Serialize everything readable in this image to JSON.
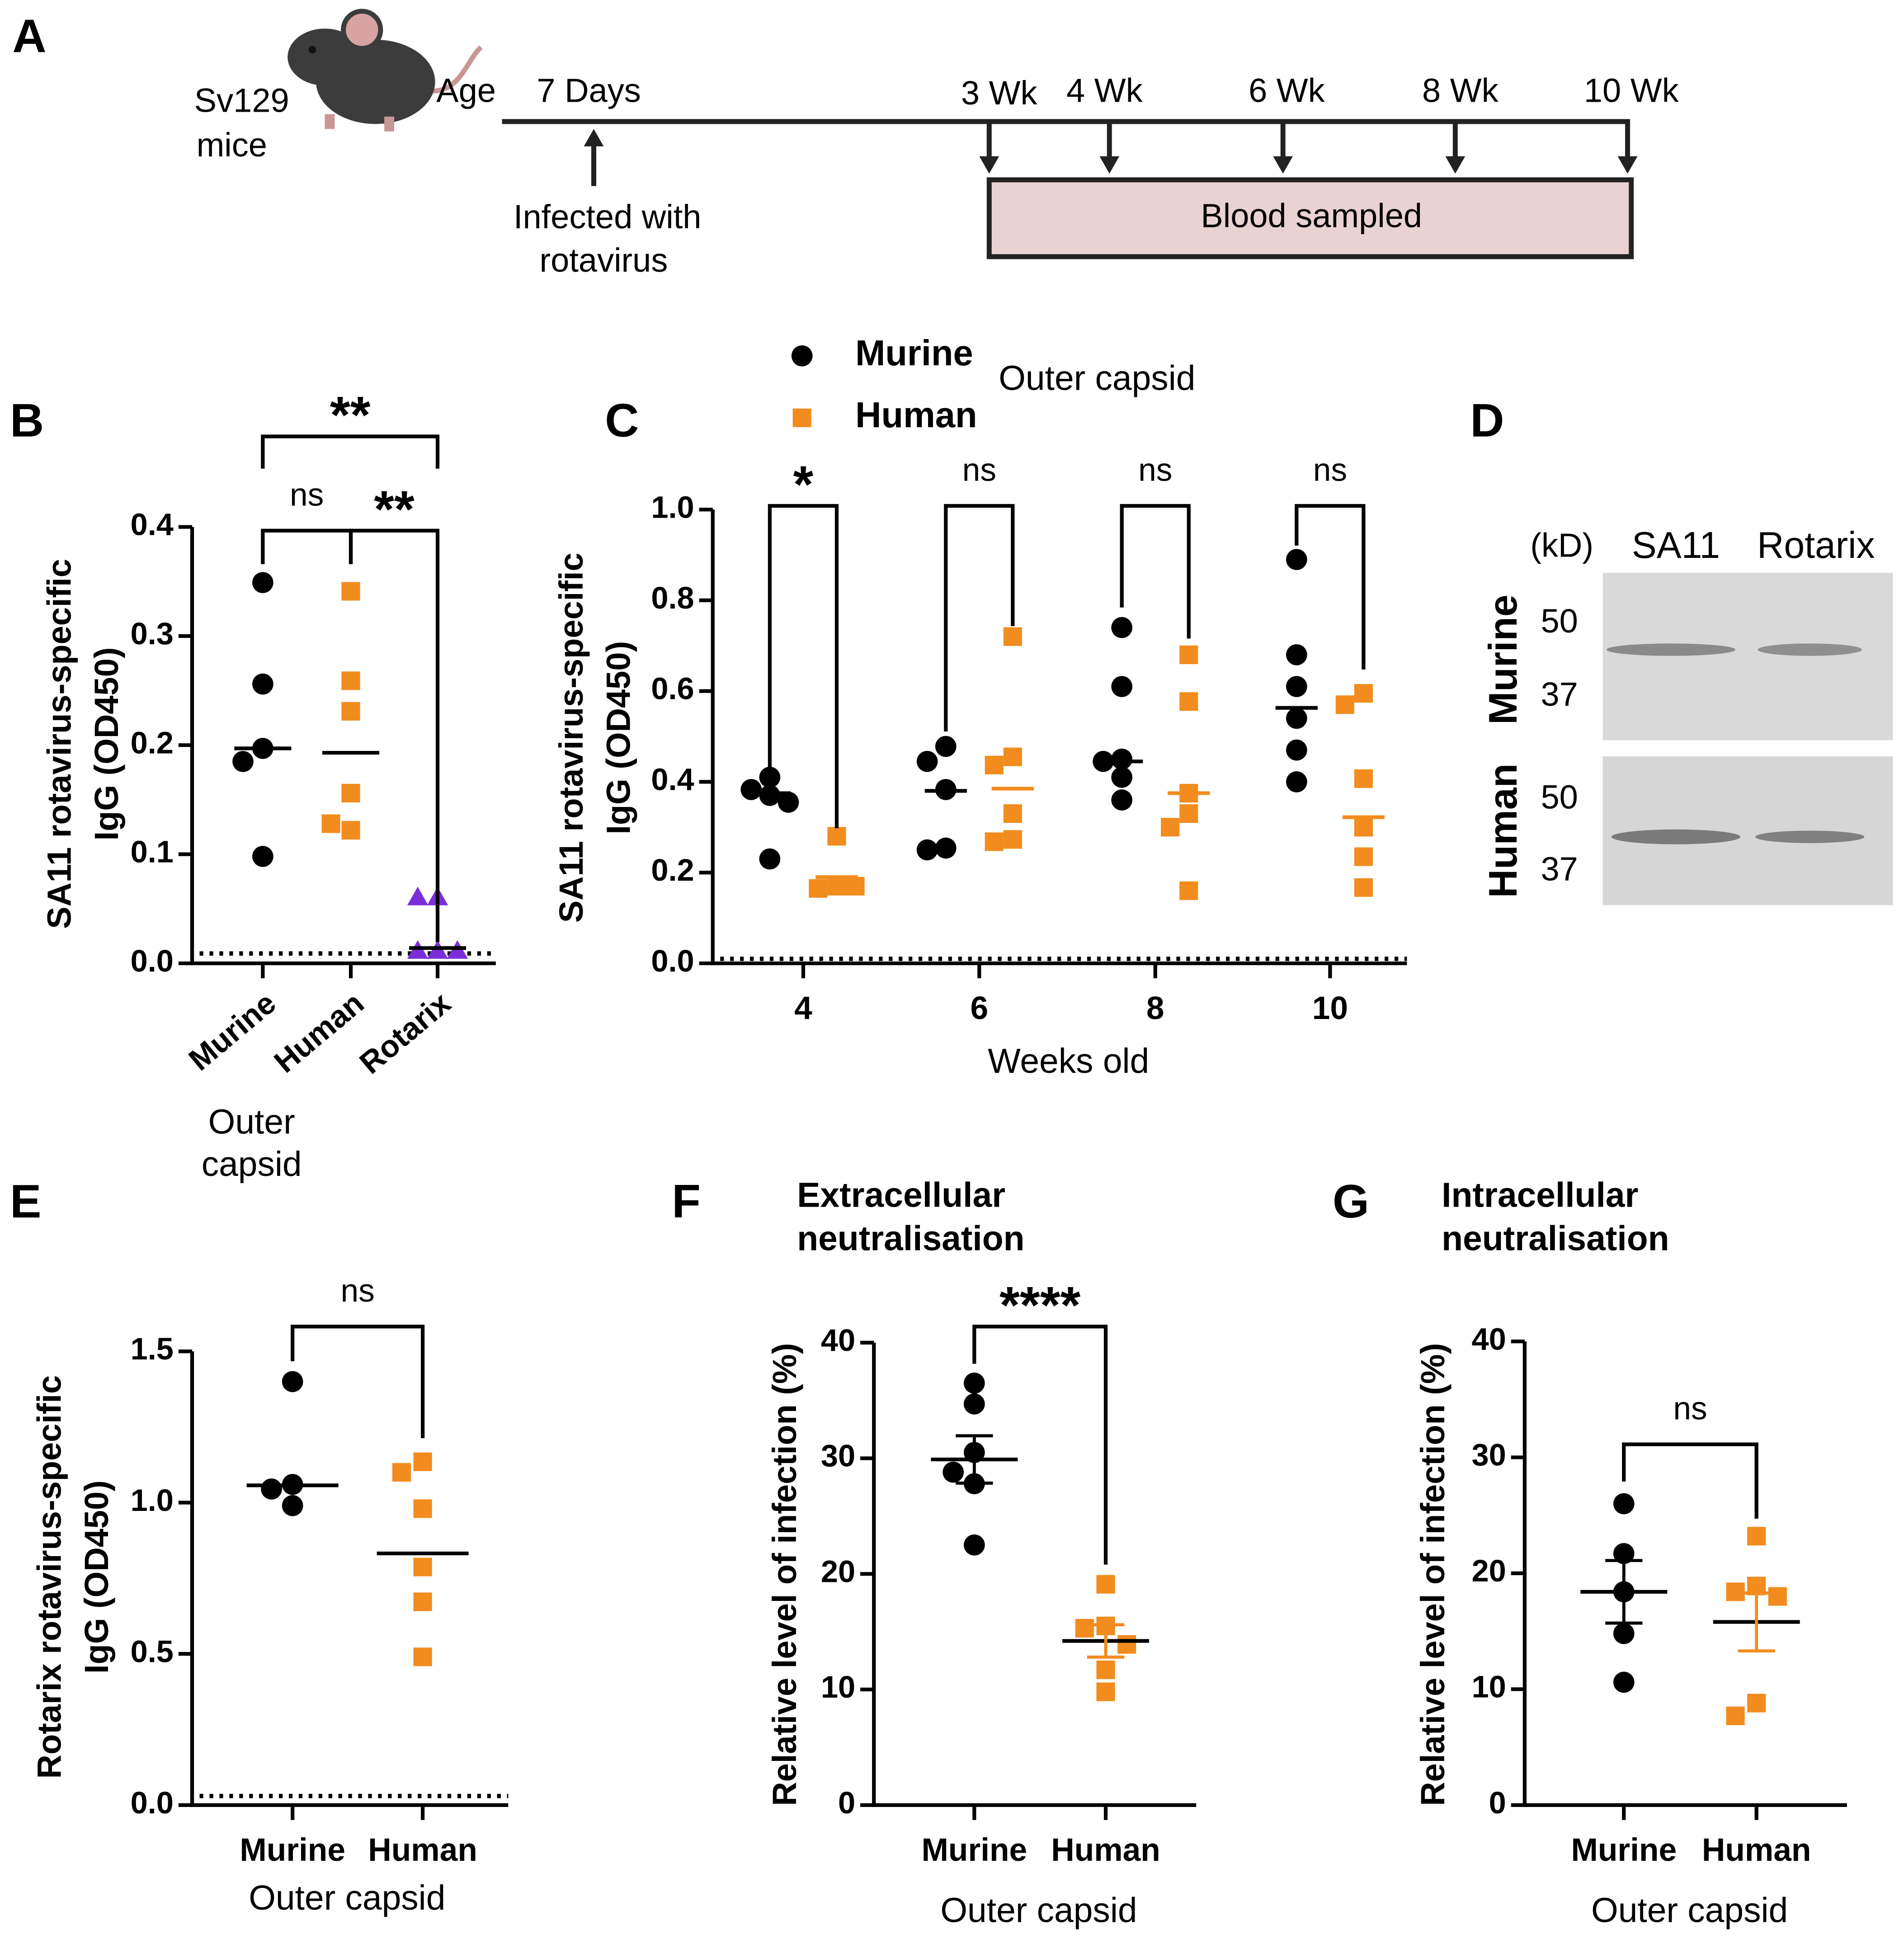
{
  "panels": [
    "A",
    "B",
    "C",
    "D",
    "E",
    "F",
    "G"
  ],
  "timeline": {
    "subject": [
      "Sv129",
      "mice"
    ],
    "axis_label": "Age",
    "start": "7 Days",
    "event": [
      "Infected with",
      "rotavirus"
    ],
    "samples": [
      "3 Wk",
      "4 Wk",
      "6 Wk",
      "8 Wk",
      "10 Wk"
    ],
    "period": "Blood sampled"
  },
  "blot": {
    "unit": "(kD)",
    "lanes": [
      "SA11",
      "Rotarix"
    ],
    "rows": [
      {
        "name": "Murine",
        "markers": [
          50,
          37
        ]
      },
      {
        "name": "Human",
        "markers": [
          50,
          37
        ]
      }
    ]
  },
  "chart_data": [
    {
      "type": "strip",
      "groups": [
        {
          "name": "Murine",
          "color": "#000000",
          "marker": "circle",
          "values": [
            0.349,
            0.256,
            0.197,
            0.185,
            0.098
          ],
          "mean": 0.197
        },
        {
          "name": "Human",
          "color": "#f28c1e",
          "marker": "square",
          "values": [
            0.341,
            0.259,
            0.231,
            0.156,
            0.122,
            0.128
          ],
          "mean": 0.193
        },
        {
          "name": "Rotarix",
          "color": "#7b2fd9",
          "marker": "triangle",
          "values": [
            0.06,
            0.06,
            0.011,
            0.011,
            0.011
          ],
          "mean": 0.014
        }
      ],
      "mean_color": "#000000",
      "ylabel": [
        "SA11 rotavirus-specific",
        "IgG (OD450)"
      ],
      "xlabel": [
        "Outer",
        "capsid"
      ],
      "ylim": [
        0,
        0.4
      ],
      "yticks": [
        {
          "value": 0,
          "label": "0.0"
        },
        0.1,
        0.2,
        0.3,
        0.4
      ],
      "limit_line": 0.009,
      "comparisons": [
        {
          "pair": [
            "Murine",
            "Human"
          ],
          "label": "ns"
        },
        {
          "pair": [
            "Human",
            "Rotarix"
          ],
          "label": "**"
        },
        {
          "pair": [
            "Murine",
            "Rotarix"
          ],
          "label": "**"
        }
      ]
    },
    {
      "type": "strip",
      "title": "Outer capsid",
      "categories": [
        "4",
        "6",
        "8",
        "10"
      ],
      "series": [
        {
          "name": "Murine",
          "color": "#000000",
          "marker": "circle",
          "values": [
            [
              0.41,
              0.383,
              0.37,
              0.355,
              0.23
            ],
            [
              0.478,
              0.445,
              0.383,
              0.254,
              0.25
            ],
            [
              0.74,
              0.61,
              0.45,
              0.445,
              0.41,
              0.36
            ],
            [
              0.89,
              0.68,
              0.61,
              0.54,
              0.47,
              0.4
            ]
          ],
          "means": [
            0.375,
            0.38,
            0.445,
            0.563
          ]
        },
        {
          "name": "Human",
          "color": "#f28c1e",
          "marker": "square",
          "values": [
            [
              0.28,
              0.17,
              0.165,
              0.17
            ],
            [
              0.72,
              0.455,
              0.437,
              0.33,
              0.273,
              0.268
            ],
            [
              0.68,
              0.577,
              0.375,
              0.33,
              0.3,
              0.16
            ],
            [
              0.595,
              0.57,
              0.407,
              0.3,
              0.235,
              0.167
            ]
          ],
          "means": [
            0.19,
            0.385,
            0.375,
            0.322
          ]
        }
      ],
      "ylabel": [
        "SA11 rotavirus-specific",
        "IgG (OD450)"
      ],
      "xlabel": "Weeks old",
      "ylim": [
        0,
        1
      ],
      "yticks": [
        {
          "value": 0,
          "label": "0.0"
        },
        0.2,
        0.4,
        0.6,
        0.8,
        {
          "value": 1,
          "label": "1.0"
        }
      ],
      "limit_line": 0.01,
      "comparisons": [
        {
          "category": "4",
          "label": "*"
        },
        {
          "category": "6",
          "label": "ns"
        },
        {
          "category": "8",
          "label": "ns"
        },
        {
          "category": "10",
          "label": "ns"
        }
      ]
    },
    {
      "type": "strip",
      "groups": [
        {
          "name": "Murine",
          "color": "#000000",
          "marker": "circle",
          "values": [
            1.4,
            1.06,
            1.045,
            0.99
          ],
          "mean": 1.057
        },
        {
          "name": "Human",
          "color": "#f28c1e",
          "marker": "square",
          "values": [
            1.135,
            1.1,
            0.98,
            0.787,
            0.672,
            0.49
          ],
          "mean": 0.832
        }
      ],
      "mean_color": "#000000",
      "ylabel": [
        "Rotarix rotavirus-specific",
        "IgG (OD450)"
      ],
      "xlabel": "Outer capsid",
      "ylim": [
        0,
        1.5
      ],
      "yticks": [
        {
          "value": 0,
          "label": "0.0"
        },
        0.5,
        {
          "value": 1,
          "label": "1.0"
        },
        1.5
      ],
      "limit_line": 0.03,
      "comparisons": [
        {
          "pair": [
            "Murine",
            "Human"
          ],
          "label": "ns"
        }
      ]
    },
    {
      "type": "strip",
      "title": [
        "Extracellular",
        "neutralisation"
      ],
      "groups": [
        {
          "name": "Murine",
          "color": "#000000",
          "marker": "circle",
          "values": [
            36.5,
            34.7,
            30.5,
            28.8,
            27.8,
            22.5
          ],
          "mean": 29.9,
          "sem": 2.05
        },
        {
          "name": "Human",
          "color": "#f28c1e",
          "marker": "square",
          "values": [
            19.1,
            15.5,
            15.3,
            13.9,
            11.7,
            9.8
          ],
          "mean": 14.2,
          "sem": 1.4
        }
      ],
      "mean_color": "#000000",
      "ylabel": "Relative level of infection (%)",
      "xlabel": "Outer capsid",
      "ylim": [
        0,
        40
      ],
      "yticks": [
        0,
        10,
        20,
        30,
        40
      ],
      "comparisons": [
        {
          "pair": [
            "Murine",
            "Human"
          ],
          "label": "****"
        }
      ]
    },
    {
      "type": "strip",
      "title": [
        "Intracellular",
        "neutralisation"
      ],
      "groups": [
        {
          "name": "Murine",
          "color": "#000000",
          "marker": "circle",
          "values": [
            26,
            21.7,
            18.4,
            14.8,
            10.6
          ],
          "mean": 18.4,
          "sem": 2.7
        },
        {
          "name": "Human",
          "color": "#f28c1e",
          "marker": "square",
          "values": [
            23.2,
            18.9,
            18.4,
            18,
            8.8,
            7.7
          ],
          "mean": 15.8,
          "sem": 2.5
        }
      ],
      "mean_color": "#000000",
      "ylabel": "Relative level of infection (%)",
      "xlabel": "Outer capsid",
      "ylim": [
        0,
        40
      ],
      "yticks": [
        0,
        10,
        20,
        30,
        40
      ],
      "comparisons": [
        {
          "pair": [
            "Murine",
            "Human"
          ],
          "label": "ns"
        }
      ]
    }
  ]
}
